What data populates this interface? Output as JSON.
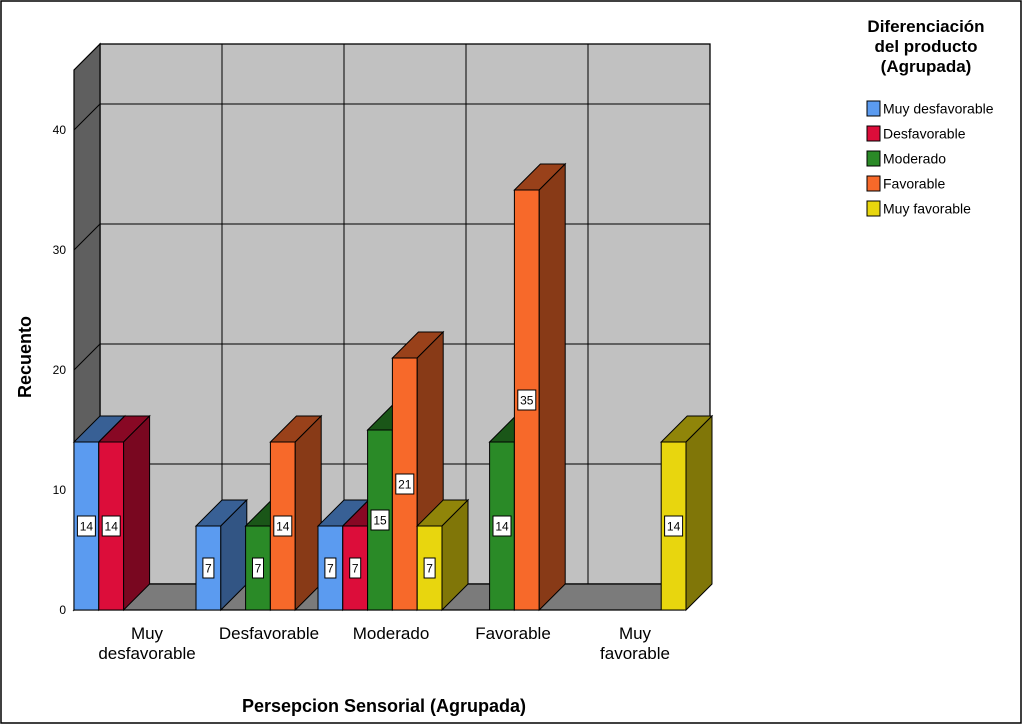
{
  "chart_data": {
    "type": "bar",
    "subtype": "3d-clustered",
    "xlabel": "Persepcion Sensorial (Agrupada)",
    "ylabel": "Recuento",
    "ylim": [
      0,
      45
    ],
    "yticks": [
      0,
      10,
      20,
      30,
      40
    ],
    "grid": true,
    "legend_title": [
      "Diferenciación",
      "del producto",
      "(Agrupada)"
    ],
    "legend_position": "top-right",
    "categories": [
      [
        "Muy",
        "desfavorable"
      ],
      [
        "Desfavorable"
      ],
      [
        "Moderado"
      ],
      [
        "Favorable"
      ],
      [
        "Muy",
        "favorable"
      ]
    ],
    "series": [
      {
        "name": "Muy desfavorable",
        "color": "#5b9bf0",
        "values": [
          14,
          7,
          7,
          null,
          null
        ]
      },
      {
        "name": "Desfavorable",
        "color": "#dc0d3a",
        "values": [
          14,
          null,
          7,
          null,
          null
        ]
      },
      {
        "name": "Moderado",
        "color": "#2a8a27",
        "values": [
          null,
          7,
          15,
          14,
          null
        ]
      },
      {
        "name": "Favorable",
        "color": "#f7692a",
        "values": [
          null,
          14,
          21,
          35,
          null
        ]
      },
      {
        "name": "Muy favorable",
        "color": "#e8d60e",
        "values": [
          null,
          null,
          7,
          null,
          14
        ]
      }
    ]
  }
}
